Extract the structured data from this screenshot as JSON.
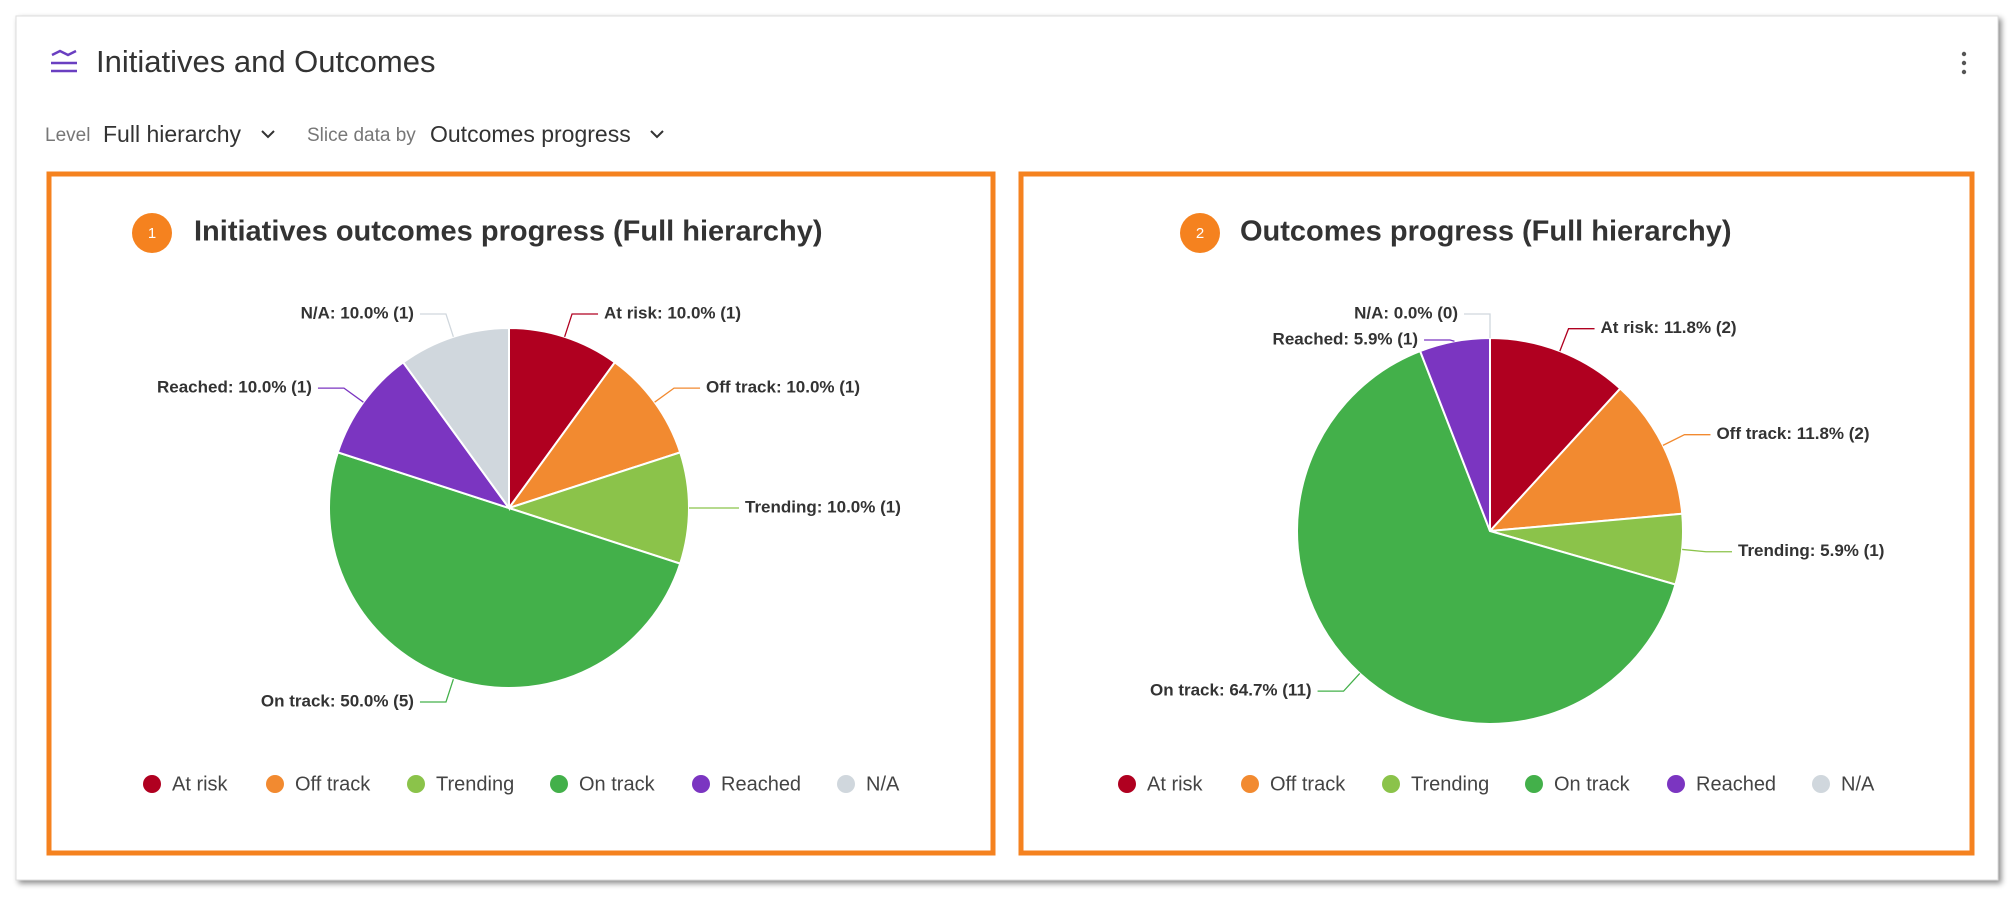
{
  "header": {
    "title": "Initiatives and Outcomes",
    "level_label": "Level",
    "level_value": "Full hierarchy",
    "slice_label": "Slice data by",
    "slice_value": "Outcomes progress"
  },
  "chart_data": [
    {
      "type": "pie",
      "badge": "1",
      "title": "Initiatives outcomes progress (Full hierarchy)",
      "categories": [
        "At risk",
        "Off track",
        "Trending",
        "On track",
        "Reached",
        "N/A"
      ],
      "values": [
        10,
        10,
        10,
        50,
        10,
        10
      ],
      "value_labels": [
        "At risk: 10.0% (1)",
        "Off track: 10.0% (1)",
        "Trending: 10.0% (1)",
        "On track: 50.0% (5)",
        "Reached: 10.0% (1)",
        "N/A: 10.0% (1)"
      ],
      "colors": [
        "#b00020",
        "#f28a30",
        "#8bc34a",
        "#43b04a",
        "#7b35c1",
        "#d0d7dd"
      ]
    },
    {
      "type": "pie",
      "badge": "2",
      "title": "Outcomes progress (Full hierarchy)",
      "categories": [
        "At risk",
        "Off track",
        "Trending",
        "On track",
        "Reached",
        "N/A"
      ],
      "values": [
        11.8,
        11.8,
        5.9,
        64.7,
        5.9,
        0
      ],
      "value_labels": [
        "At risk: 11.8% (2)",
        "Off track: 11.8% (2)",
        "Trending: 5.9% (1)",
        "On track: 64.7% (11)",
        "Reached: 5.9% (1)",
        "N/A: 0.0% (0)"
      ],
      "colors": [
        "#b00020",
        "#f28a30",
        "#8bc34a",
        "#43b04a",
        "#7b35c1",
        "#d0d7dd"
      ]
    }
  ]
}
